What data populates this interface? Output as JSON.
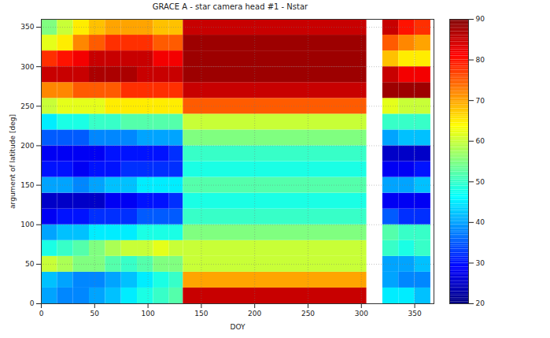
{
  "chart_data": {
    "type": "heatmap",
    "title": "GRACE A - star camera head #1 - Nstar",
    "x_label": "DOY",
    "y_label": "argument of latitude [deg]",
    "xlim": [
      0,
      368
    ],
    "ylim": [
      0,
      360
    ],
    "xticks": [
      0,
      50,
      100,
      150,
      200,
      250,
      300,
      350
    ],
    "yticks": [
      0,
      50,
      100,
      150,
      200,
      250,
      300,
      350
    ],
    "grid": true,
    "x_edges": [
      0,
      15,
      30,
      45,
      60,
      75,
      90,
      105,
      120,
      133,
      305,
      320,
      335,
      350,
      365
    ],
    "y_edges": [
      0,
      20,
      40,
      60,
      80,
      100,
      120,
      140,
      160,
      180,
      200,
      220,
      240,
      260,
      280,
      300,
      320,
      340,
      360
    ],
    "values": [
      [
        40,
        38,
        38,
        40,
        42,
        45,
        48,
        50,
        52,
        85,
        null,
        45,
        45,
        42,
        42
      ],
      [
        42,
        40,
        38,
        38,
        40,
        42,
        45,
        48,
        50,
        70,
        null,
        40,
        38,
        38,
        40
      ],
      [
        60,
        58,
        55,
        55,
        52,
        50,
        52,
        55,
        55,
        60,
        null,
        40,
        40,
        42,
        42
      ],
      [
        48,
        50,
        52,
        55,
        58,
        60,
        60,
        62,
        60,
        60,
        null,
        50,
        48,
        50,
        52
      ],
      [
        40,
        42,
        42,
        45,
        45,
        45,
        48,
        48,
        48,
        55,
        null,
        52,
        50,
        50,
        52
      ],
      [
        28,
        30,
        30,
        32,
        32,
        32,
        35,
        35,
        35,
        50,
        null,
        35,
        32,
        32,
        35
      ],
      [
        25,
        25,
        25,
        25,
        28,
        28,
        30,
        30,
        32,
        48,
        null,
        28,
        28,
        28,
        30
      ],
      [
        40,
        40,
        38,
        40,
        42,
        42,
        45,
        45,
        45,
        52,
        null,
        40,
        40,
        42,
        42
      ],
      [
        30,
        30,
        28,
        30,
        30,
        32,
        32,
        32,
        32,
        48,
        null,
        28,
        28,
        30,
        30
      ],
      [
        28,
        28,
        28,
        28,
        30,
        30,
        30,
        30,
        32,
        50,
        null,
        25,
        25,
        25,
        28
      ],
      [
        35,
        35,
        35,
        38,
        38,
        38,
        40,
        40,
        40,
        55,
        null,
        40,
        42,
        42,
        45
      ],
      [
        45,
        48,
        48,
        50,
        50,
        52,
        52,
        52,
        52,
        60,
        null,
        50,
        50,
        50,
        50
      ],
      [
        60,
        62,
        62,
        62,
        65,
        65,
        65,
        65,
        65,
        75,
        null,
        62,
        60,
        60,
        60
      ],
      [
        72,
        72,
        75,
        75,
        75,
        78,
        78,
        78,
        78,
        85,
        null,
        88,
        88,
        88,
        88
      ],
      [
        85,
        85,
        85,
        87,
        87,
        87,
        85,
        85,
        85,
        88,
        null,
        85,
        82,
        82,
        80
      ],
      [
        78,
        80,
        82,
        85,
        85,
        85,
        85,
        82,
        82,
        88,
        null,
        68,
        65,
        65,
        65
      ],
      [
        62,
        65,
        72,
        75,
        78,
        78,
        78,
        75,
        75,
        88,
        null,
        75,
        72,
        70,
        70
      ],
      [
        55,
        60,
        65,
        68,
        70,
        70,
        70,
        68,
        68,
        85,
        null,
        85,
        80,
        78,
        78
      ]
    ],
    "colorbar": {
      "range": [
        20,
        90
      ],
      "ticks": [
        20,
        30,
        40,
        50,
        60,
        70,
        80,
        90
      ]
    }
  }
}
